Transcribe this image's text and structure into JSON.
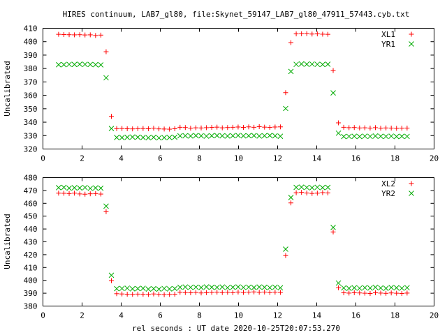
{
  "chart_data": [
    {
      "type": "scatter",
      "title": "HIRES continuum, LAB7_gl80, file:Skynet_59147_LAB7_gl80_47911_57443.cyb.txt",
      "xlabel": "",
      "ylabel": "Uncalibrated",
      "xlim": [
        0,
        20
      ],
      "ylim": [
        320,
        410
      ],
      "xticks": [
        "0",
        "2",
        "4",
        "6",
        "8",
        "10",
        "12",
        "14",
        "16",
        "18",
        "20"
      ],
      "yticks": [
        "320",
        "330",
        "340",
        "350",
        "360",
        "370",
        "380",
        "390",
        "400",
        "410"
      ],
      "grid": false,
      "legend": "top-right",
      "x": [
        0.8,
        1.07,
        1.34,
        1.61,
        1.88,
        2.15,
        2.42,
        2.69,
        2.96,
        3.23,
        3.5,
        3.77,
        4.04,
        4.31,
        4.58,
        4.85,
        5.12,
        5.39,
        5.66,
        5.93,
        6.2,
        6.47,
        6.74,
        7.01,
        7.28,
        7.55,
        7.82,
        8.09,
        8.36,
        8.63,
        8.9,
        9.17,
        9.44,
        9.71,
        9.98,
        10.25,
        10.52,
        10.79,
        11.06,
        11.33,
        11.6,
        11.87,
        12.14,
        12.41,
        12.68,
        12.95,
        13.22,
        13.49,
        13.76,
        14.03,
        14.3,
        14.57,
        14.84,
        15.11,
        15.38,
        15.65,
        15.92,
        16.19,
        16.46,
        16.73,
        17.0,
        17.27,
        17.54,
        17.81,
        18.08,
        18.35,
        18.62
      ],
      "series": [
        {
          "name": "XL1",
          "marker": "plus",
          "color": "#ff0000",
          "values": [
            405.5,
            405.3,
            405.2,
            405.1,
            405.2,
            405.0,
            405.1,
            404.6,
            404.9,
            392.5,
            344.3,
            335.2,
            335.3,
            335.1,
            335.0,
            335.2,
            335.3,
            335.1,
            335.5,
            335.0,
            334.9,
            334.8,
            335.1,
            336.2,
            336.0,
            335.5,
            335.8,
            335.7,
            335.9,
            336.1,
            336.3,
            335.8,
            336.0,
            336.2,
            336.4,
            336.1,
            336.5,
            336.2,
            336.7,
            336.3,
            336.1,
            336.4,
            336.5,
            362.0,
            399.3,
            405.8,
            405.9,
            406.0,
            405.7,
            405.8,
            405.6,
            405.5,
            378.5,
            339.5,
            336.2,
            335.9,
            336.0,
            335.7,
            335.8,
            335.6,
            335.9,
            335.5,
            335.7,
            335.6,
            335.4,
            335.5,
            335.6
          ]
        },
        {
          "name": "YR1",
          "marker": "cross",
          "color": "#00aa00",
          "values": [
            382.8,
            382.9,
            383.1,
            383.0,
            383.2,
            383.1,
            383.0,
            382.9,
            382.7,
            373.1,
            335.3,
            328.6,
            328.5,
            328.7,
            328.9,
            328.8,
            328.6,
            328.4,
            328.7,
            328.3,
            328.5,
            328.6,
            328.8,
            329.8,
            329.9,
            329.7,
            330.0,
            329.8,
            329.6,
            329.9,
            330.0,
            329.8,
            329.7,
            329.9,
            330.1,
            329.8,
            329.9,
            330.0,
            329.7,
            329.9,
            330.1,
            329.8,
            329.5,
            350.2,
            377.8,
            383.1,
            383.4,
            383.2,
            383.3,
            383.1,
            383.0,
            383.2,
            361.8,
            331.8,
            329.3,
            329.4,
            329.5,
            329.3,
            329.6,
            329.4,
            329.7,
            329.5,
            329.4,
            329.6,
            329.3,
            329.5,
            329.4
          ]
        }
      ]
    },
    {
      "type": "scatter",
      "title": "",
      "xlabel": "rel seconds : UT date 2020-10-25T20:07:53.270",
      "ylabel": "Uncalibrated",
      "xlim": [
        0,
        20
      ],
      "ylim": [
        380,
        480
      ],
      "xticks": [
        "0",
        "2",
        "4",
        "6",
        "8",
        "10",
        "12",
        "14",
        "16",
        "18",
        "20"
      ],
      "yticks": [
        "380",
        "390",
        "400",
        "410",
        "420",
        "430",
        "440",
        "450",
        "460",
        "470",
        "480"
      ],
      "grid": false,
      "legend": "top-right",
      "x": [
        0.8,
        1.07,
        1.34,
        1.61,
        1.88,
        2.15,
        2.42,
        2.69,
        2.96,
        3.23,
        3.5,
        3.77,
        4.04,
        4.31,
        4.58,
        4.85,
        5.12,
        5.39,
        5.66,
        5.93,
        6.2,
        6.47,
        6.74,
        7.01,
        7.28,
        7.55,
        7.82,
        8.09,
        8.36,
        8.63,
        8.9,
        9.17,
        9.44,
        9.71,
        9.98,
        10.25,
        10.52,
        10.79,
        11.06,
        11.33,
        11.6,
        11.87,
        12.14,
        12.41,
        12.68,
        12.95,
        13.22,
        13.49,
        13.76,
        14.03,
        14.3,
        14.57,
        14.84,
        15.11,
        15.38,
        15.65,
        15.92,
        16.19,
        16.46,
        16.73,
        17.0,
        17.27,
        17.54,
        17.81,
        18.08,
        18.35,
        18.62
      ],
      "series": [
        {
          "name": "XL2",
          "marker": "plus",
          "color": "#ff0000",
          "values": [
            467.9,
            467.8,
            467.6,
            467.9,
            467.3,
            467.1,
            467.4,
            467.6,
            467.2,
            453.5,
            399.8,
            389.6,
            389.4,
            389.2,
            389.1,
            389.3,
            389.2,
            389.0,
            389.4,
            389.1,
            388.8,
            389.0,
            389.2,
            390.7,
            390.5,
            390.3,
            390.6,
            390.2,
            390.4,
            390.6,
            390.8,
            390.5,
            390.7,
            390.4,
            390.9,
            390.6,
            390.8,
            391.0,
            390.7,
            390.9,
            390.5,
            390.8,
            390.6,
            419.3,
            460.3,
            468.2,
            468.5,
            468.0,
            467.7,
            467.9,
            468.3,
            468.1,
            437.7,
            394.2,
            390.3,
            390.1,
            390.4,
            390.2,
            390.0,
            389.8,
            390.3,
            390.1,
            389.9,
            390.2,
            390.0,
            389.8,
            390.1
          ]
        },
        {
          "name": "YR2",
          "marker": "cross",
          "color": "#00aa00",
          "values": [
            472.2,
            472.4,
            471.8,
            472.1,
            471.9,
            472.3,
            471.6,
            472.0,
            471.8,
            457.8,
            404.0,
            393.5,
            393.7,
            393.9,
            393.4,
            393.6,
            393.8,
            393.2,
            393.5,
            393.1,
            393.7,
            393.3,
            393.6,
            394.6,
            394.8,
            394.5,
            394.7,
            394.4,
            394.9,
            394.6,
            394.5,
            394.8,
            394.3,
            394.6,
            394.9,
            394.5,
            394.7,
            394.4,
            394.8,
            394.6,
            394.3,
            394.7,
            394.2,
            424.3,
            464.5,
            472.4,
            472.6,
            472.3,
            472.1,
            472.5,
            472.2,
            472.4,
            441.2,
            397.9,
            394.1,
            393.8,
            394.2,
            393.9,
            394.3,
            394.0,
            394.6,
            394.1,
            393.8,
            394.4,
            394.2,
            393.9,
            394.3
          ]
        }
      ]
    }
  ]
}
